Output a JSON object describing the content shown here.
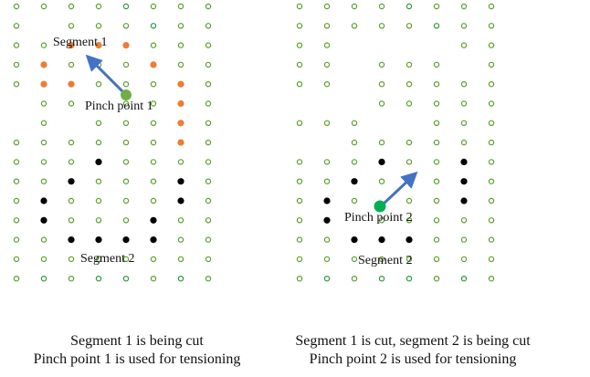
{
  "colors": {
    "hole": "#5aa02c",
    "hole_dark": "#2e9a3c",
    "segment1": "#ed7d31",
    "segment2": "#000000",
    "pinch": "#70ad47",
    "pinch2": "#00b050",
    "arrow": "#4472c4"
  },
  "left_panel": {
    "segment1_label": "Segment 1",
    "pinch_label": "Pinch point 1",
    "segment2_label": "Segment 2",
    "caption_line1": "Segment 1 is being cut",
    "caption_line2": "Pinch point 1 is used for tensioning"
  },
  "right_panel": {
    "pinch_label": "Pinch point 2",
    "segment2_label": "Segment 2",
    "caption_line1": "Segment 1 is cut, segment 2 is being cut",
    "caption_line2": "Pinch point 2 is used for tensioning"
  }
}
